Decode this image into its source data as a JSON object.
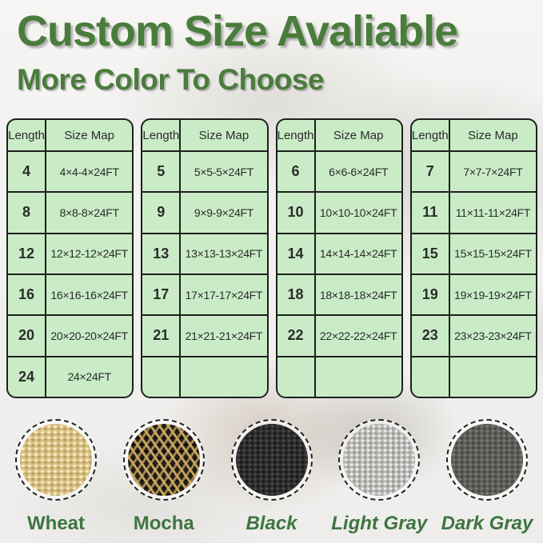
{
  "title": "Custom Size Avaliable",
  "subtitle": "More Color To Choose",
  "tables": [
    {
      "headers": [
        "Length",
        "Size Map"
      ],
      "rows": [
        [
          "4",
          "4×4-4×24FT"
        ],
        [
          "8",
          "8×8-8×24FT"
        ],
        [
          "12",
          "12×12-12×24FT"
        ],
        [
          "16",
          "16×16-16×24FT"
        ],
        [
          "20",
          "20×20-20×24FT"
        ],
        [
          "24",
          "24×24FT"
        ]
      ]
    },
    {
      "headers": [
        "Length",
        "Size Map"
      ],
      "rows": [
        [
          "5",
          "5×5-5×24FT"
        ],
        [
          "9",
          "9×9-9×24FT"
        ],
        [
          "13",
          "13×13-13×24FT"
        ],
        [
          "17",
          "17×17-17×24FT"
        ],
        [
          "21",
          "21×21-21×24FT"
        ],
        [
          "",
          ""
        ]
      ]
    },
    {
      "headers": [
        "Length",
        "Size Map"
      ],
      "rows": [
        [
          "6",
          "6×6-6×24FT"
        ],
        [
          "10",
          "10×10-10×24FT"
        ],
        [
          "14",
          "14×14-14×24FT"
        ],
        [
          "18",
          "18×18-18×24FT"
        ],
        [
          "22",
          "22×22-22×24FT"
        ],
        [
          "",
          ""
        ]
      ]
    },
    {
      "headers": [
        "Length",
        "Size Map"
      ],
      "rows": [
        [
          "7",
          "7×7-7×24FT"
        ],
        [
          "11",
          "11×11-11×24FT"
        ],
        [
          "15",
          "15×15-15×24FT"
        ],
        [
          "19",
          "19×19-19×24FT"
        ],
        [
          "23",
          "23×23-23×24FT"
        ],
        [
          "",
          ""
        ]
      ]
    }
  ],
  "color_swatches": [
    {
      "name": "Wheat",
      "base_color": "#d9c183",
      "italic": false
    },
    {
      "name": "Mocha",
      "base_color": "#241f17",
      "italic": false
    },
    {
      "name": "Black",
      "base_color": "#2e2e2e",
      "italic": true
    },
    {
      "name": "Light Gray",
      "base_color": "#b8b8b5",
      "italic": true
    },
    {
      "name": "Dark Gray",
      "base_color": "#5f5e5a",
      "italic": true
    }
  ],
  "theme": {
    "heading_green": "#4a7c3c",
    "label_green": "#3d7540",
    "table_bg": "#c9ecc6",
    "table_border": "#1f1f1f"
  }
}
